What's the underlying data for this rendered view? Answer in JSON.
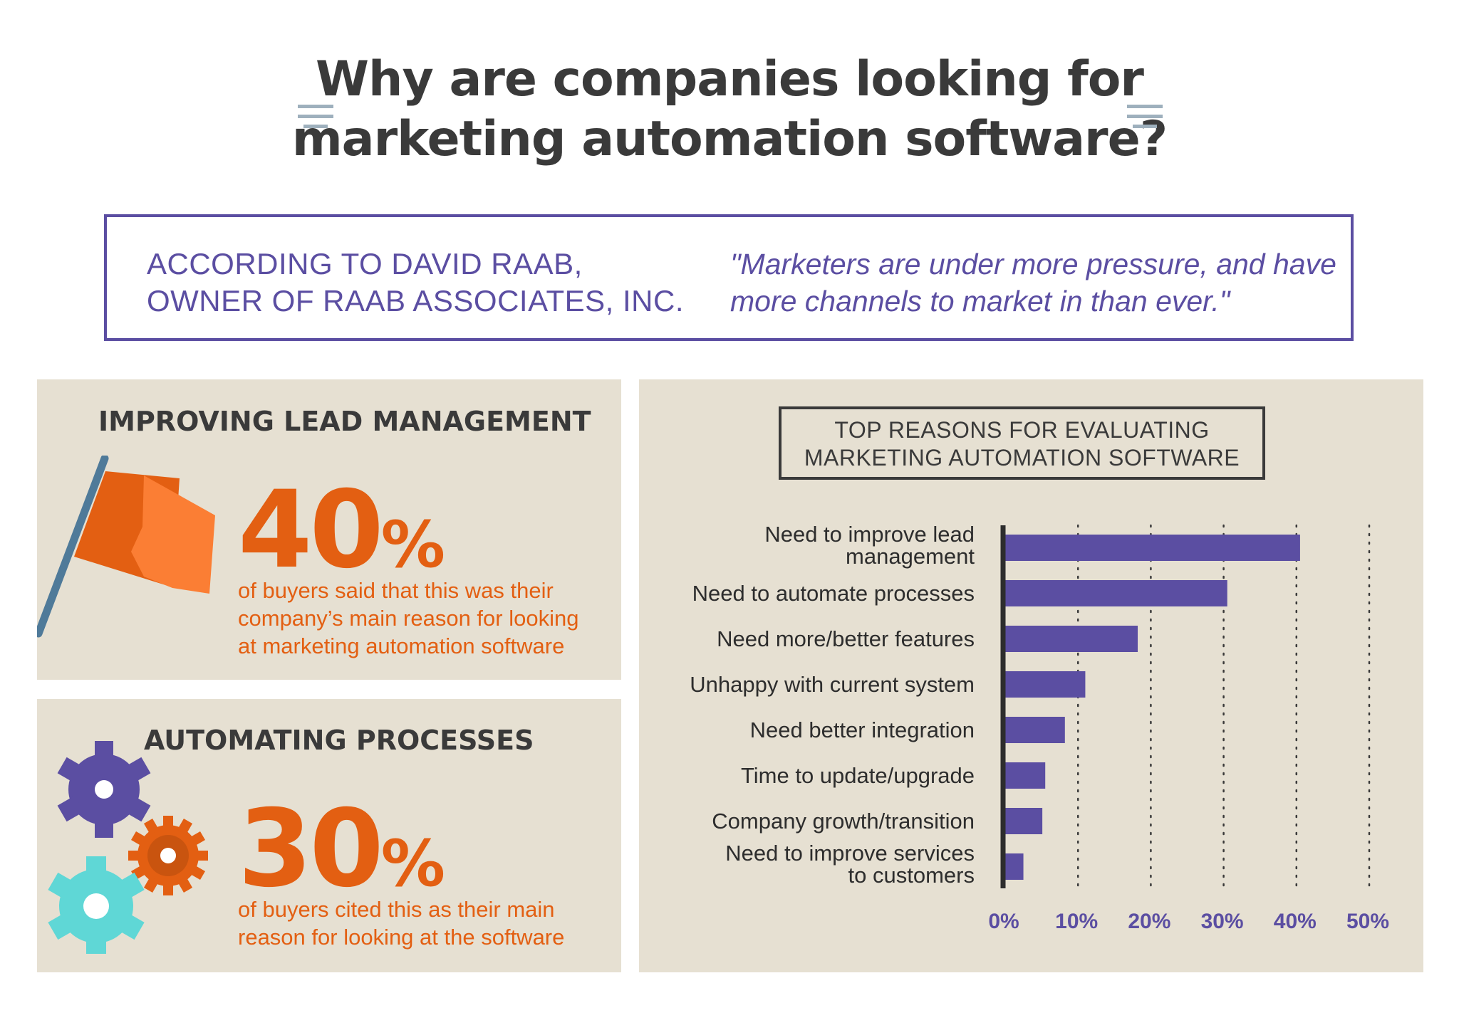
{
  "header": {
    "title_line1": "Why are companies looking for",
    "title_line2": "marketing automation software?",
    "accent_color": "#9eb0bd",
    "decoration_icon": "three-lines-icon"
  },
  "quote": {
    "attribution_line1": "ACCORDING TO DAVID RAAB,",
    "attribution_line2": "OWNER OF RAAB ASSOCIATES, INC.",
    "text_line1": "\"Marketers are under more pressure, and have",
    "text_line2": "more channels to market in than ever.\"",
    "color": "#5b4ea2"
  },
  "stat_lead": {
    "heading": "IMPROVING LEAD MANAGEMENT",
    "value": "40",
    "symbol": "%",
    "caption_line1": "of buyers said that this was their",
    "caption_line2": "company’s main reason for looking",
    "caption_line3": "at marketing automation software",
    "icon": "flag-icon",
    "color": "#e35f12"
  },
  "stat_automation": {
    "heading": "AUTOMATING PROCESSES",
    "value": "30",
    "symbol": "%",
    "caption_line1": "of buyers cited this as their main",
    "caption_line2": "reason for looking at the software",
    "icons": [
      "gear-icon-purple",
      "gear-icon-orange",
      "gear-icon-teal"
    ],
    "color": "#e35f12"
  },
  "chart_data": {
    "type": "bar",
    "orientation": "horizontal",
    "title_line1": "TOP REASONS FOR EVALUATING",
    "title_line2": "MARKETING AUTOMATION SOFTWARE",
    "categories": [
      [
        "Need to improve lead",
        "management"
      ],
      [
        "Need to automate processes"
      ],
      [
        "Need more/better features"
      ],
      [
        "Unhappy with current system"
      ],
      [
        "Need better integration"
      ],
      [
        "Time to update/upgrade"
      ],
      [
        "Company growth/transition"
      ],
      [
        "Need to improve services",
        "to customers"
      ]
    ],
    "values": [
      40.5,
      30.5,
      18.2,
      11.0,
      8.2,
      5.5,
      5.1,
      2.5
    ],
    "xlim": [
      0,
      50
    ],
    "ticks": [
      "0%",
      "10%",
      "20%",
      "30%",
      "40%",
      "50%"
    ],
    "grid": "dotted vertical",
    "bar_color": "#5b4ea2",
    "tick_color": "#5b4ea2"
  }
}
